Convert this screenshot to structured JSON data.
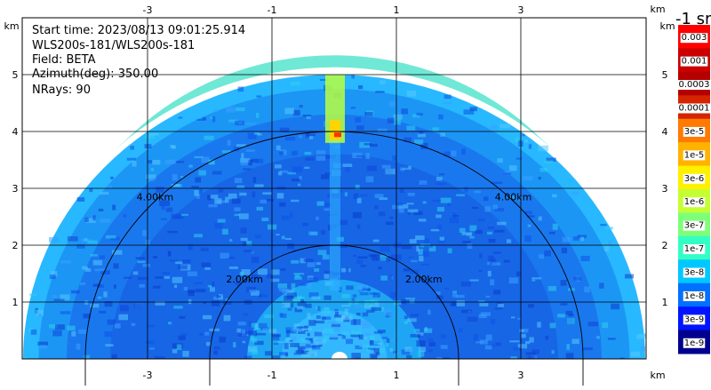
{
  "info": {
    "start_time": "Start time: 2023/08/13 09:01:25.914",
    "instrument": "WLS200s-181/WLS200s-181",
    "field": "Field: BETA",
    "azimuth": "Azimuth(deg): 350.00",
    "nrays": "NRays: 90"
  },
  "chart_data": {
    "type": "heatmap",
    "title": "",
    "projection": "RHI half-disk (range-height)",
    "x_axis": {
      "unit_label": "km",
      "range": [
        -5.0,
        5.0
      ],
      "ticks": [
        -3,
        -1,
        1,
        3
      ],
      "tick_labels": [
        "-3",
        "-1",
        "1",
        "3"
      ],
      "grid": true
    },
    "y_axis": {
      "unit_label": "km",
      "range": [
        0,
        5.6
      ],
      "ticks": [
        1,
        2,
        3,
        4,
        5
      ],
      "tick_labels": [
        "1",
        "2",
        "3",
        "4",
        "5"
      ],
      "grid": true
    },
    "range_rings": [
      {
        "radius": 2,
        "label": "2.00km"
      },
      {
        "radius": 4,
        "label": "4.00km"
      }
    ],
    "max_range_km": 5.0,
    "colorbar": {
      "unit": "-1 sr",
      "position": "right",
      "levels": [
        {
          "label": "0.003",
          "color": "#ff0000"
        },
        {
          "label": "0.001",
          "color": "#cc0000"
        },
        {
          "label": "0.0003",
          "color": "#b50000"
        },
        {
          "label": "0.0001",
          "color": "#d42400"
        },
        {
          "label": "3e-5",
          "color": "#ff7a00"
        },
        {
          "label": "1e-5",
          "color": "#ffb300"
        },
        {
          "label": "3e-6",
          "color": "#fff000"
        },
        {
          "label": "1e-6",
          "color": "#c4ff33"
        },
        {
          "label": "3e-7",
          "color": "#7dff7a"
        },
        {
          "label": "1e-7",
          "color": "#33ffc4"
        },
        {
          "label": "3e-8",
          "color": "#00c8ff"
        },
        {
          "label": "1e-8",
          "color": "#0070ff"
        },
        {
          "label": "3e-9",
          "color": "#0014ff"
        },
        {
          "label": "1e-9",
          "color": "#00008f"
        }
      ]
    }
  }
}
